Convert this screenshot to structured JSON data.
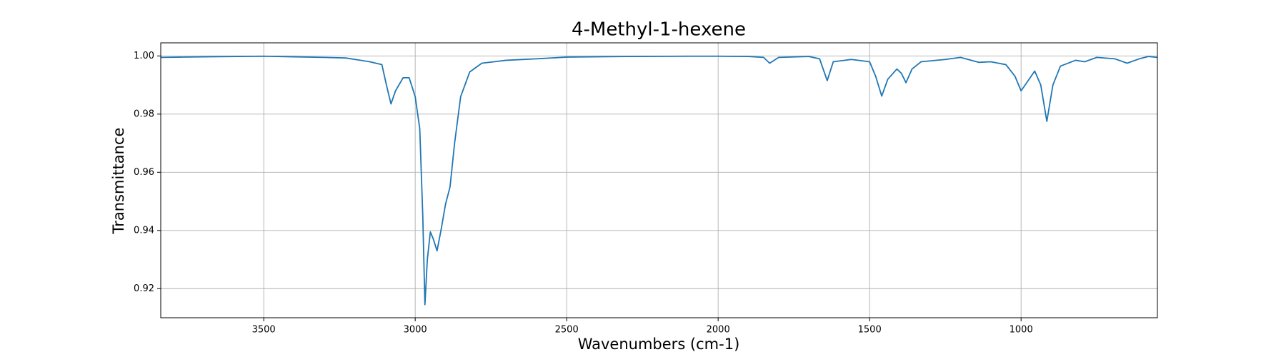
{
  "chart_data": {
    "type": "line",
    "title": "4-Methyl-1-hexene",
    "x_label": "Wavenumbers (cm-1)",
    "y_label": "Transmittance",
    "x": [
      3840,
      3700,
      3500,
      3400,
      3300,
      3230,
      3150,
      3110,
      3095,
      3080,
      3065,
      3040,
      3020,
      3000,
      2985,
      2975,
      2968,
      2960,
      2950,
      2940,
      2928,
      2915,
      2900,
      2885,
      2870,
      2850,
      2820,
      2780,
      2740,
      2700,
      2600,
      2500,
      2300,
      2100,
      2000,
      1900,
      1850,
      1830,
      1800,
      1700,
      1665,
      1640,
      1620,
      1560,
      1500,
      1480,
      1460,
      1440,
      1410,
      1395,
      1380,
      1360,
      1330,
      1250,
      1200,
      1140,
      1100,
      1050,
      1020,
      1000,
      980,
      955,
      935,
      915,
      895,
      870,
      820,
      790,
      750,
      690,
      650,
      610,
      580,
      550
    ],
    "series": [
      {
        "name": "4-Methyl-1-hexene",
        "color": "#1f77b4",
        "values": [
          0.9995,
          0.9997,
          0.9999,
          0.9997,
          0.9995,
          0.9993,
          0.998,
          0.997,
          0.99,
          0.9835,
          0.988,
          0.9925,
          0.9925,
          0.986,
          0.975,
          0.945,
          0.9145,
          0.93,
          0.9395,
          0.937,
          0.933,
          0.94,
          0.949,
          0.955,
          0.97,
          0.986,
          0.9945,
          0.9975,
          0.998,
          0.9985,
          0.999,
          0.9996,
          0.9998,
          0.9999,
          0.9999,
          0.9998,
          0.9995,
          0.9975,
          0.9995,
          0.9998,
          0.999,
          0.9915,
          0.998,
          0.9988,
          0.998,
          0.993,
          0.9862,
          0.992,
          0.9955,
          0.994,
          0.9908,
          0.9955,
          0.998,
          0.9988,
          0.9995,
          0.9978,
          0.998,
          0.997,
          0.993,
          0.988,
          0.991,
          0.9948,
          0.99,
          0.9775,
          0.99,
          0.9965,
          0.9985,
          0.998,
          0.9995,
          0.999,
          0.9975,
          0.999,
          0.9998,
          0.9995
        ]
      }
    ],
    "xlim": [
      3840,
      550
    ],
    "xticks": [
      3500,
      3000,
      2500,
      2000,
      1500,
      1000
    ],
    "ylim": [
      0.91,
      1.0045
    ],
    "yticks": [
      0.92,
      0.94,
      0.96,
      0.98,
      {
        "value": 1,
        "label": "1.00"
      }
    ],
    "grid": true
  }
}
